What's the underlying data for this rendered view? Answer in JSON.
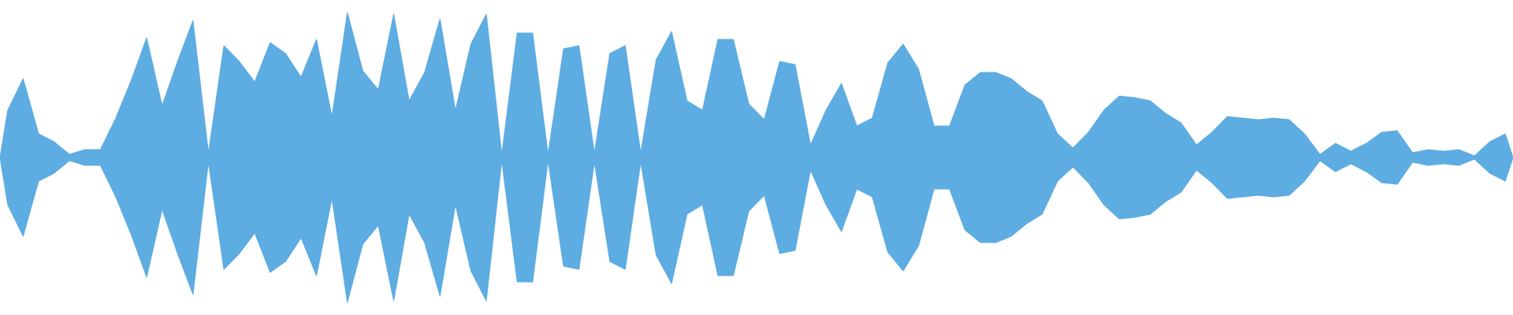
{
  "chart_data": {
    "type": "waveform",
    "color": "#5dace2",
    "ylim": [
      -1,
      1
    ],
    "values": [
      0.3,
      0.5,
      0.15,
      0.1,
      0.02,
      0.05,
      0.05,
      0.25,
      0.49,
      0.76,
      0.33,
      0.61,
      0.87,
      0.03,
      0.71,
      0.61,
      0.48,
      0.73,
      0.66,
      0.51,
      0.75,
      0.26,
      0.92,
      0.55,
      0.43,
      0.91,
      0.36,
      0.54,
      0.88,
      0.3,
      0.72,
      0.91,
      0.02,
      0.79,
      0.79,
      0.02,
      0.69,
      0.71,
      0.03,
      0.66,
      0.71,
      0.03,
      0.62,
      0.8,
      0.36,
      0.3,
      0.75,
      0.75,
      0.34,
      0.24,
      0.61,
      0.59,
      0.08,
      0.3,
      0.47,
      0.2,
      0.25,
      0.6,
      0.72,
      0.56,
      0.2,
      0.2,
      0.46,
      0.54,
      0.54,
      0.5,
      0.42,
      0.36,
      0.15,
      0.06,
      0.16,
      0.3,
      0.39,
      0.38,
      0.36,
      0.28,
      0.22,
      0.08,
      0.16,
      0.26,
      0.25,
      0.24,
      0.25,
      0.24,
      0.15,
      0.02,
      0.09,
      0.04,
      0.09,
      0.16,
      0.17,
      0.03,
      0.05,
      0.04,
      0.05,
      0.01,
      0.1,
      0.15
    ]
  }
}
